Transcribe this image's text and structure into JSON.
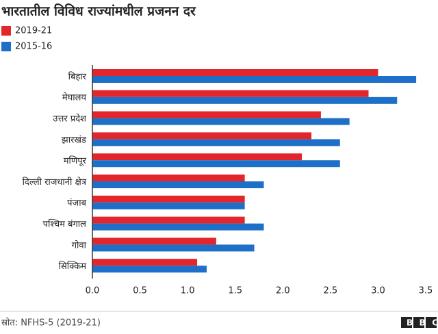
{
  "chart_data": {
    "type": "bar",
    "orientation": "horizontal",
    "title": "भारतातील विविध राज्यांमधील प्रजनन दर",
    "categories": [
      "बिहार",
      "मेघालय",
      "उत्तर प्रदेश",
      "झारखंड",
      "मणिपूर",
      "दिल्ली राजधानी क्षेत्र",
      "पंजाब",
      "पश्चिम बंगाल",
      "गोवा",
      "सिक्किम"
    ],
    "series": [
      {
        "name": "2019-21",
        "color": "#e3262b",
        "values": [
          3.0,
          2.9,
          2.4,
          2.3,
          2.2,
          1.6,
          1.6,
          1.6,
          1.3,
          1.1
        ]
      },
      {
        "name": "2015-16",
        "color": "#1d6fc7",
        "values": [
          3.4,
          3.2,
          2.7,
          2.6,
          2.6,
          1.8,
          1.6,
          1.8,
          1.7,
          1.2
        ]
      }
    ],
    "xlim": [
      0,
      3.5
    ],
    "xticks": [
      {
        "value": 0,
        "label": "0.0"
      },
      0.5,
      {
        "value": 1,
        "label": "1.0"
      },
      1.5,
      {
        "value": 2,
        "label": "2.0"
      },
      2.5,
      {
        "value": 3,
        "label": "3.0"
      },
      3.5
    ],
    "legend": "top-left",
    "source": "स्रोत: NFHS-5 (2019-21)",
    "logo": "BBC"
  }
}
